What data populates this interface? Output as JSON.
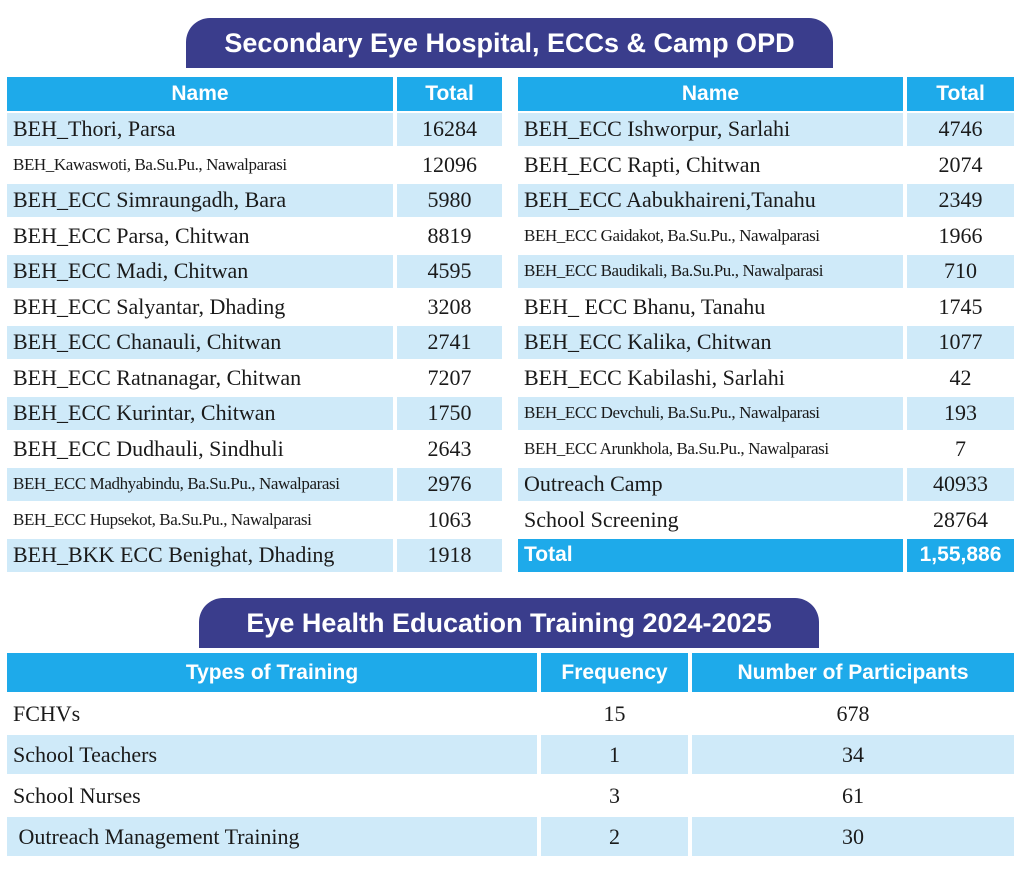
{
  "opd": {
    "title": "Secondary Eye Hospital, ECCs & Camp  OPD",
    "headers": {
      "name": "Name",
      "total": "Total"
    },
    "left_rows": [
      {
        "name": "BEH_Thori, Parsa",
        "total": "16284"
      },
      {
        "name": "BEH_Kawaswoti, Ba.Su.Pu., Nawalparasi",
        "total": "12096"
      },
      {
        "name": "BEH_ECC Simraungadh, Bara",
        "total": "5980"
      },
      {
        "name": "BEH_ECC Parsa, Chitwan",
        "total": "8819"
      },
      {
        "name": "BEH_ECC Madi, Chitwan",
        "total": "4595"
      },
      {
        "name": "BEH_ECC Salyantar, Dhading",
        "total": "3208"
      },
      {
        "name": "BEH_ECC Chanauli, Chitwan",
        "total": "2741"
      },
      {
        "name": "BEH_ECC Ratnanagar, Chitwan",
        "total": "7207"
      },
      {
        "name": "BEH_ECC Kurintar, Chitwan",
        "total": "1750"
      },
      {
        "name": "BEH_ECC Dudhauli, Sindhuli",
        "total": "2643"
      },
      {
        "name": "BEH_ECC Madhyabindu, Ba.Su.Pu., Nawalparasi",
        "total": "2976"
      },
      {
        "name": "BEH_ECC Hupsekot, Ba.Su.Pu., Nawalparasi",
        "total": "1063"
      },
      {
        "name": "BEH_BKK ECC Benighat, Dhading",
        "total": "1918"
      }
    ],
    "right_rows": [
      {
        "name": "BEH_ECC Ishworpur, Sarlahi",
        "total": "4746"
      },
      {
        "name": "BEH_ECC Rapti, Chitwan",
        "total": "2074"
      },
      {
        "name": "BEH_ECC Aabukhaireni,Tanahu",
        "total": "2349"
      },
      {
        "name": "BEH_ECC Gaidakot, Ba.Su.Pu., Nawalparasi",
        "total": "1966"
      },
      {
        "name": "BEH_ECC Baudikali, Ba.Su.Pu., Nawalparasi",
        "total": "710"
      },
      {
        "name": "BEH_ ECC Bhanu, Tanahu",
        "total": "1745"
      },
      {
        "name": "BEH_ECC Kalika, Chitwan",
        "total": "1077"
      },
      {
        "name": "BEH_ECC Kabilashi, Sarlahi",
        "total": "42"
      },
      {
        "name": "BEH_ECC Devchuli, Ba.Su.Pu., Nawalparasi",
        "total": "193"
      },
      {
        "name": "BEH_ECC Arunkhola, Ba.Su.Pu., Nawalparasi",
        "total": "7"
      },
      {
        "name": "Outreach Camp",
        "total": "40933"
      },
      {
        "name": "School Screening",
        "total": "28764"
      }
    ],
    "grand_total": {
      "label": "Total",
      "value": "1,55,886"
    }
  },
  "training": {
    "title": "Eye Health Education Training 2024-2025",
    "headers": {
      "type": "Types of Training",
      "frequency": "Frequency",
      "participants": "Number of Participants"
    },
    "rows": [
      {
        "type": "FCHVs",
        "frequency": "15",
        "participants": "678"
      },
      {
        "type": "School Teachers",
        "frequency": "1",
        "participants": "34"
      },
      {
        "type": "School Nurses",
        "frequency": "3",
        "participants": "61"
      },
      {
        "type": " Outreach Management Training",
        "frequency": "2",
        "participants": "30"
      }
    ]
  },
  "colors": {
    "banner": "#3a3d8c",
    "header": "#1eaaea",
    "row_shade": "#cfeaf9"
  }
}
